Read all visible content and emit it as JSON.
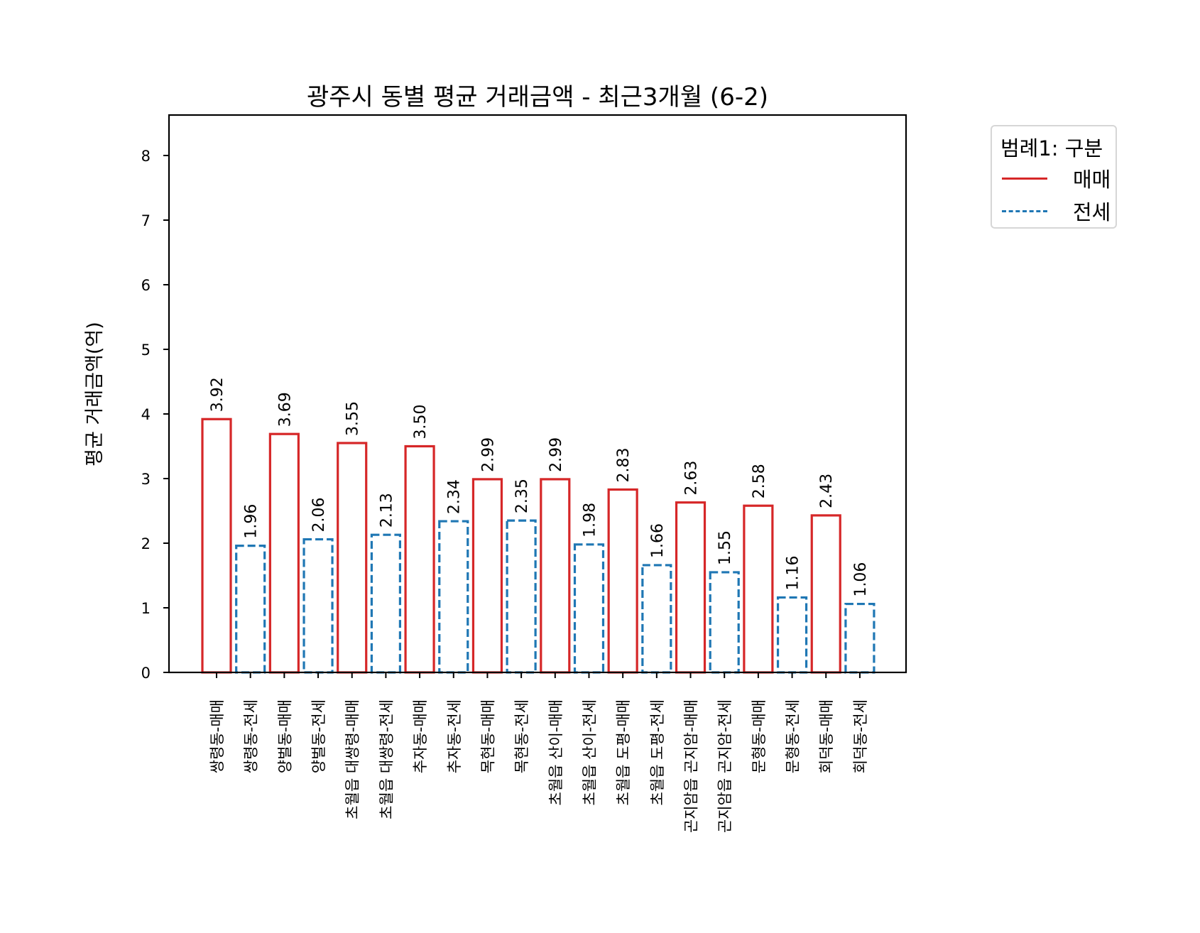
{
  "chart_data": {
    "type": "bar",
    "title": "광주시 동별 평균 거래금액 - 최근3개월 (6-2)",
    "xlabel": "",
    "ylabel": "평균 거래금액(억)",
    "ylim": [
      0,
      8.6
    ],
    "yticks": [
      0,
      1,
      2,
      3,
      4,
      5,
      6,
      7,
      8
    ],
    "grid": false,
    "legend_position": "outside upper right",
    "legend": {
      "title": "범례1: 구분",
      "entries": [
        {
          "label": "매매",
          "color": "#d62728",
          "style": "solid"
        },
        {
          "label": "전세",
          "color": "#1f77b4",
          "style": "dashed"
        }
      ]
    },
    "categories": [
      "쌍령동-매매",
      "쌍령동-전세",
      "양벌동-매매",
      "양벌동-전세",
      "초월읍 대쌍령-매매",
      "초월읍 대쌍령-전세",
      "추자동-매매",
      "추자동-전세",
      "목현동-매매",
      "목현동-전세",
      "초월읍 산이-매매",
      "초월읍 산이-전세",
      "초월읍 도평-매매",
      "초월읍 도평-전세",
      "곤지암읍 곤지암-매매",
      "곤지암읍 곤지암-전세",
      "문형동-매매",
      "문형동-전세",
      "회덕동-매매",
      "회덕동-전세"
    ],
    "values": [
      3.92,
      1.96,
      3.69,
      2.06,
      3.55,
      2.13,
      3.5,
      2.34,
      2.99,
      2.35,
      2.99,
      1.98,
      2.83,
      1.66,
      2.63,
      1.55,
      2.58,
      1.16,
      2.43,
      1.06
    ],
    "value_labels": [
      "3.92",
      "1.96",
      "3.69",
      "2.06",
      "3.55",
      "2.13",
      "3.50",
      "2.34",
      "2.99",
      "2.35",
      "2.99",
      "1.98",
      "2.83",
      "1.66",
      "2.63",
      "1.55",
      "2.58",
      "1.16",
      "2.43",
      "1.06"
    ],
    "series_type": [
      "매매",
      "전세",
      "매매",
      "전세",
      "매매",
      "전세",
      "매매",
      "전세",
      "매매",
      "전세",
      "매매",
      "전세",
      "매매",
      "전세",
      "매매",
      "전세",
      "매매",
      "전세",
      "매매",
      "전세"
    ],
    "colors": {
      "매매": "#d62728",
      "전세": "#1f77b4"
    }
  }
}
